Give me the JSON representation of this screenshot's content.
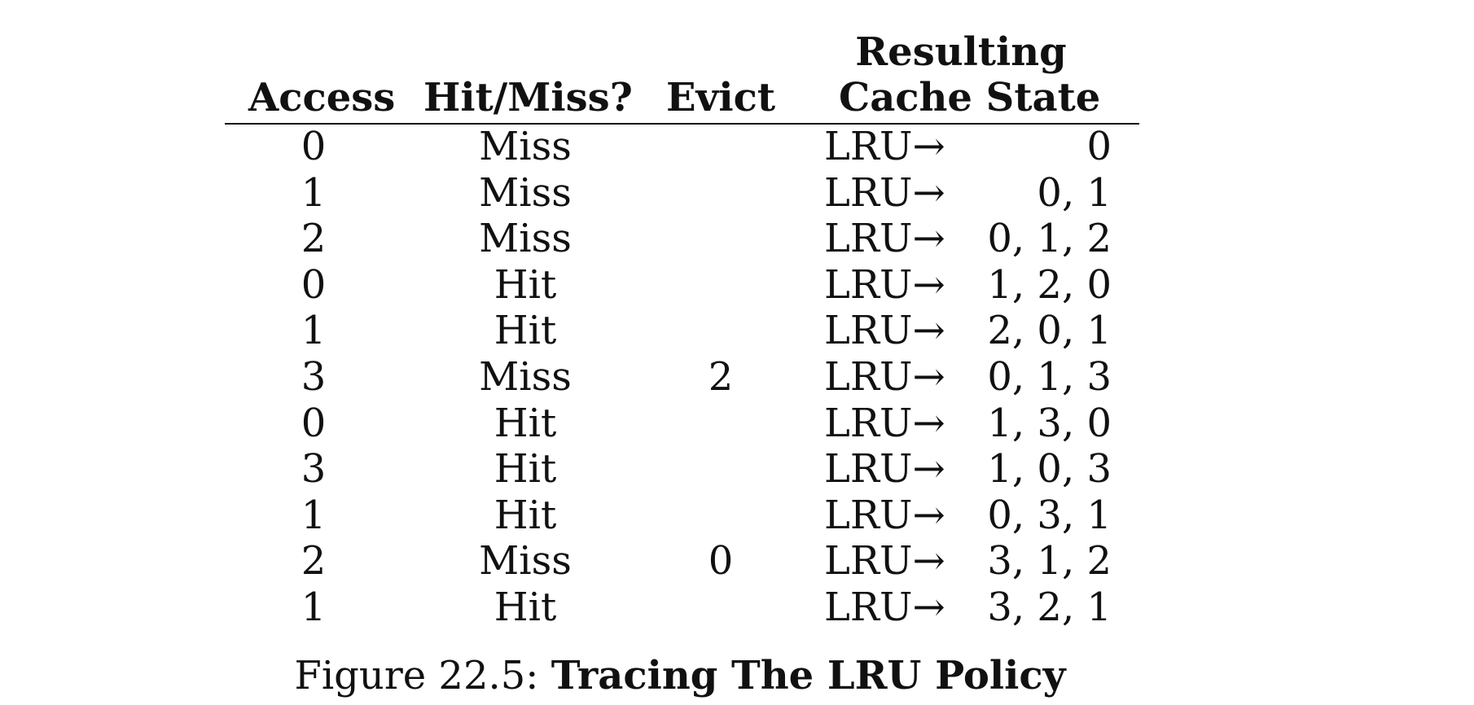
{
  "table": {
    "headers": {
      "access": "Access",
      "hit_miss": "Hit/Miss?",
      "evict": "Evict",
      "state_line1": "Resulting",
      "state_line2": "Cache State"
    },
    "rows": [
      {
        "access": "0",
        "hit_miss": "Miss",
        "evict": "",
        "lru": "LRU→",
        "state": "0"
      },
      {
        "access": "1",
        "hit_miss": "Miss",
        "evict": "",
        "lru": "LRU→",
        "state": "0, 1"
      },
      {
        "access": "2",
        "hit_miss": "Miss",
        "evict": "",
        "lru": "LRU→",
        "state": "0, 1, 2"
      },
      {
        "access": "0",
        "hit_miss": "Hit",
        "evict": "",
        "lru": "LRU→",
        "state": "1, 2, 0"
      },
      {
        "access": "1",
        "hit_miss": "Hit",
        "evict": "",
        "lru": "LRU→",
        "state": "2, 0, 1"
      },
      {
        "access": "3",
        "hit_miss": "Miss",
        "evict": "2",
        "lru": "LRU→",
        "state": "0, 1, 3"
      },
      {
        "access": "0",
        "hit_miss": "Hit",
        "evict": "",
        "lru": "LRU→",
        "state": "1, 3, 0"
      },
      {
        "access": "3",
        "hit_miss": "Hit",
        "evict": "",
        "lru": "LRU→",
        "state": "1, 0, 3"
      },
      {
        "access": "1",
        "hit_miss": "Hit",
        "evict": "",
        "lru": "LRU→",
        "state": "0, 3, 1"
      },
      {
        "access": "2",
        "hit_miss": "Miss",
        "evict": "0",
        "lru": "LRU→",
        "state": "3, 1, 2"
      },
      {
        "access": "1",
        "hit_miss": "Hit",
        "evict": "",
        "lru": "LRU→",
        "state": "3, 2, 1"
      }
    ]
  },
  "caption": {
    "number": "Figure 22.5:",
    "title": "Tracing The LRU Policy"
  }
}
